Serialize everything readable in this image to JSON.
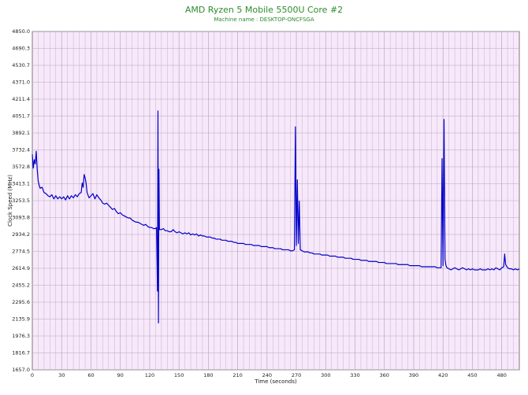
{
  "chart_data": {
    "type": "line",
    "title": "AMD Ryzen 5 Mobile 5500U Core #2",
    "subtitle": "Machine name : DESKTOP-ONCFSGA",
    "xlabel": "Time (seconds)",
    "ylabel": "Clock Speed (MHz)",
    "xlim": [
      0,
      498
    ],
    "ylim": [
      1657.0,
      4850.0
    ],
    "x_ticks": [
      "0",
      "30",
      "60",
      "90",
      "120",
      "150",
      "180",
      "210",
      "240",
      "270",
      "300",
      "330",
      "360",
      "390",
      "420",
      "450",
      "480"
    ],
    "y_ticks": [
      "4850.0",
      "4690.3",
      "4530.7",
      "4371.0",
      "4211.4",
      "4051.7",
      "3892.1",
      "3732.4",
      "3572.8",
      "3413.1",
      "3253.5",
      "3093.8",
      "2934.2",
      "2774.5",
      "2614.9",
      "2455.2",
      "2295.6",
      "2135.9",
      "1976.3",
      "1816.7",
      "1657.0"
    ],
    "grid": true,
    "line_color": "#0000c8",
    "plot_background": "#f7e8fa",
    "series": [
      {
        "values": [
          [
            0,
            3690
          ],
          [
            1,
            3560
          ],
          [
            2,
            3640
          ],
          [
            3,
            3600
          ],
          [
            4,
            3720
          ],
          [
            5,
            3550
          ],
          [
            6,
            3440
          ],
          [
            7,
            3400
          ],
          [
            8,
            3370
          ],
          [
            10,
            3380
          ],
          [
            12,
            3330
          ],
          [
            14,
            3320
          ],
          [
            16,
            3300
          ],
          [
            18,
            3290
          ],
          [
            20,
            3310
          ],
          [
            22,
            3270
          ],
          [
            24,
            3300
          ],
          [
            26,
            3270
          ],
          [
            28,
            3290
          ],
          [
            30,
            3270
          ],
          [
            32,
            3290
          ],
          [
            34,
            3260
          ],
          [
            36,
            3300
          ],
          [
            38,
            3270
          ],
          [
            40,
            3300
          ],
          [
            42,
            3280
          ],
          [
            44,
            3310
          ],
          [
            46,
            3290
          ],
          [
            48,
            3320
          ],
          [
            50,
            3330
          ],
          [
            51,
            3420
          ],
          [
            52,
            3380
          ],
          [
            53,
            3500
          ],
          [
            54,
            3470
          ],
          [
            55,
            3420
          ],
          [
            56,
            3330
          ],
          [
            58,
            3280
          ],
          [
            60,
            3300
          ],
          [
            62,
            3320
          ],
          [
            64,
            3270
          ],
          [
            66,
            3310
          ],
          [
            68,
            3280
          ],
          [
            70,
            3260
          ],
          [
            72,
            3230
          ],
          [
            74,
            3220
          ],
          [
            76,
            3230
          ],
          [
            78,
            3210
          ],
          [
            80,
            3190
          ],
          [
            82,
            3170
          ],
          [
            84,
            3180
          ],
          [
            86,
            3150
          ],
          [
            88,
            3130
          ],
          [
            90,
            3140
          ],
          [
            92,
            3120
          ],
          [
            94,
            3110
          ],
          [
            96,
            3100
          ],
          [
            98,
            3090
          ],
          [
            100,
            3090
          ],
          [
            102,
            3070
          ],
          [
            104,
            3060
          ],
          [
            106,
            3050
          ],
          [
            108,
            3050
          ],
          [
            110,
            3040
          ],
          [
            112,
            3030
          ],
          [
            114,
            3020
          ],
          [
            116,
            3030
          ],
          [
            118,
            3010
          ],
          [
            120,
            3000
          ],
          [
            122,
            3000
          ],
          [
            124,
            2990
          ],
          [
            126,
            2990
          ],
          [
            127,
            3000
          ],
          [
            128,
            2400
          ],
          [
            128.5,
            4100
          ],
          [
            129,
            2100
          ],
          [
            129.5,
            3550
          ],
          [
            130,
            2980
          ],
          [
            132,
            2980
          ],
          [
            134,
            2990
          ],
          [
            136,
            2970
          ],
          [
            138,
            2970
          ],
          [
            140,
            2960
          ],
          [
            142,
            2960
          ],
          [
            144,
            2980
          ],
          [
            146,
            2960
          ],
          [
            148,
            2950
          ],
          [
            150,
            2960
          ],
          [
            152,
            2950
          ],
          [
            154,
            2940
          ],
          [
            156,
            2950
          ],
          [
            158,
            2940
          ],
          [
            160,
            2950
          ],
          [
            162,
            2930
          ],
          [
            164,
            2940
          ],
          [
            166,
            2930
          ],
          [
            168,
            2940
          ],
          [
            170,
            2920
          ],
          [
            172,
            2930
          ],
          [
            174,
            2920
          ],
          [
            176,
            2920
          ],
          [
            178,
            2910
          ],
          [
            180,
            2910
          ],
          [
            182,
            2910
          ],
          [
            184,
            2900
          ],
          [
            186,
            2900
          ],
          [
            188,
            2890
          ],
          [
            190,
            2890
          ],
          [
            192,
            2890
          ],
          [
            194,
            2880
          ],
          [
            196,
            2880
          ],
          [
            198,
            2880
          ],
          [
            200,
            2870
          ],
          [
            202,
            2870
          ],
          [
            204,
            2870
          ],
          [
            206,
            2860
          ],
          [
            208,
            2860
          ],
          [
            210,
            2850
          ],
          [
            212,
            2850
          ],
          [
            214,
            2850
          ],
          [
            216,
            2850
          ],
          [
            218,
            2840
          ],
          [
            220,
            2840
          ],
          [
            222,
            2840
          ],
          [
            224,
            2840
          ],
          [
            226,
            2830
          ],
          [
            228,
            2830
          ],
          [
            230,
            2830
          ],
          [
            232,
            2830
          ],
          [
            234,
            2820
          ],
          [
            236,
            2820
          ],
          [
            238,
            2820
          ],
          [
            240,
            2820
          ],
          [
            242,
            2810
          ],
          [
            244,
            2810
          ],
          [
            246,
            2810
          ],
          [
            248,
            2800
          ],
          [
            250,
            2800
          ],
          [
            252,
            2800
          ],
          [
            254,
            2800
          ],
          [
            256,
            2790
          ],
          [
            258,
            2790
          ],
          [
            260,
            2790
          ],
          [
            262,
            2790
          ],
          [
            264,
            2780
          ],
          [
            266,
            2780
          ],
          [
            268,
            2790
          ],
          [
            269,
            3950
          ],
          [
            270,
            2830
          ],
          [
            271,
            3450
          ],
          [
            272,
            2850
          ],
          [
            273,
            3250
          ],
          [
            274,
            2790
          ],
          [
            276,
            2780
          ],
          [
            278,
            2770
          ],
          [
            280,
            2770
          ],
          [
            282,
            2770
          ],
          [
            284,
            2760
          ],
          [
            286,
            2760
          ],
          [
            288,
            2750
          ],
          [
            290,
            2750
          ],
          [
            292,
            2750
          ],
          [
            294,
            2750
          ],
          [
            296,
            2740
          ],
          [
            298,
            2740
          ],
          [
            300,
            2740
          ],
          [
            302,
            2740
          ],
          [
            304,
            2730
          ],
          [
            306,
            2730
          ],
          [
            308,
            2730
          ],
          [
            310,
            2730
          ],
          [
            312,
            2720
          ],
          [
            314,
            2720
          ],
          [
            316,
            2720
          ],
          [
            318,
            2720
          ],
          [
            320,
            2710
          ],
          [
            322,
            2710
          ],
          [
            324,
            2710
          ],
          [
            326,
            2710
          ],
          [
            328,
            2700
          ],
          [
            330,
            2700
          ],
          [
            332,
            2700
          ],
          [
            334,
            2700
          ],
          [
            336,
            2690
          ],
          [
            338,
            2690
          ],
          [
            340,
            2690
          ],
          [
            342,
            2690
          ],
          [
            344,
            2680
          ],
          [
            346,
            2680
          ],
          [
            348,
            2680
          ],
          [
            350,
            2680
          ],
          [
            352,
            2680
          ],
          [
            354,
            2670
          ],
          [
            356,
            2670
          ],
          [
            358,
            2670
          ],
          [
            360,
            2670
          ],
          [
            362,
            2660
          ],
          [
            364,
            2660
          ],
          [
            366,
            2660
          ],
          [
            368,
            2660
          ],
          [
            370,
            2660
          ],
          [
            372,
            2660
          ],
          [
            374,
            2650
          ],
          [
            376,
            2650
          ],
          [
            378,
            2650
          ],
          [
            380,
            2650
          ],
          [
            382,
            2650
          ],
          [
            384,
            2650
          ],
          [
            386,
            2640
          ],
          [
            388,
            2640
          ],
          [
            390,
            2640
          ],
          [
            392,
            2640
          ],
          [
            394,
            2640
          ],
          [
            396,
            2640
          ],
          [
            398,
            2630
          ],
          [
            400,
            2630
          ],
          [
            402,
            2630
          ],
          [
            404,
            2630
          ],
          [
            406,
            2630
          ],
          [
            408,
            2630
          ],
          [
            410,
            2630
          ],
          [
            412,
            2630
          ],
          [
            414,
            2620
          ],
          [
            416,
            2620
          ],
          [
            418,
            2620
          ],
          [
            419,
            3650
          ],
          [
            420,
            2640
          ],
          [
            421,
            4020
          ],
          [
            422,
            2700
          ],
          [
            423,
            2640
          ],
          [
            424,
            2620
          ],
          [
            426,
            2610
          ],
          [
            428,
            2600
          ],
          [
            430,
            2610
          ],
          [
            432,
            2620
          ],
          [
            434,
            2610
          ],
          [
            436,
            2600
          ],
          [
            438,
            2610
          ],
          [
            440,
            2620
          ],
          [
            442,
            2610
          ],
          [
            444,
            2600
          ],
          [
            446,
            2610
          ],
          [
            448,
            2600
          ],
          [
            450,
            2610
          ],
          [
            452,
            2600
          ],
          [
            454,
            2600
          ],
          [
            456,
            2600
          ],
          [
            458,
            2610
          ],
          [
            460,
            2600
          ],
          [
            462,
            2600
          ],
          [
            464,
            2600
          ],
          [
            466,
            2610
          ],
          [
            468,
            2600
          ],
          [
            470,
            2610
          ],
          [
            472,
            2600
          ],
          [
            474,
            2620
          ],
          [
            476,
            2610
          ],
          [
            478,
            2600
          ],
          [
            480,
            2620
          ],
          [
            482,
            2630
          ],
          [
            483,
            2750
          ],
          [
            484,
            2650
          ],
          [
            486,
            2620
          ],
          [
            488,
            2610
          ],
          [
            490,
            2610
          ],
          [
            492,
            2600
          ],
          [
            494,
            2610
          ],
          [
            496,
            2600
          ],
          [
            498,
            2610
          ]
        ]
      }
    ]
  }
}
